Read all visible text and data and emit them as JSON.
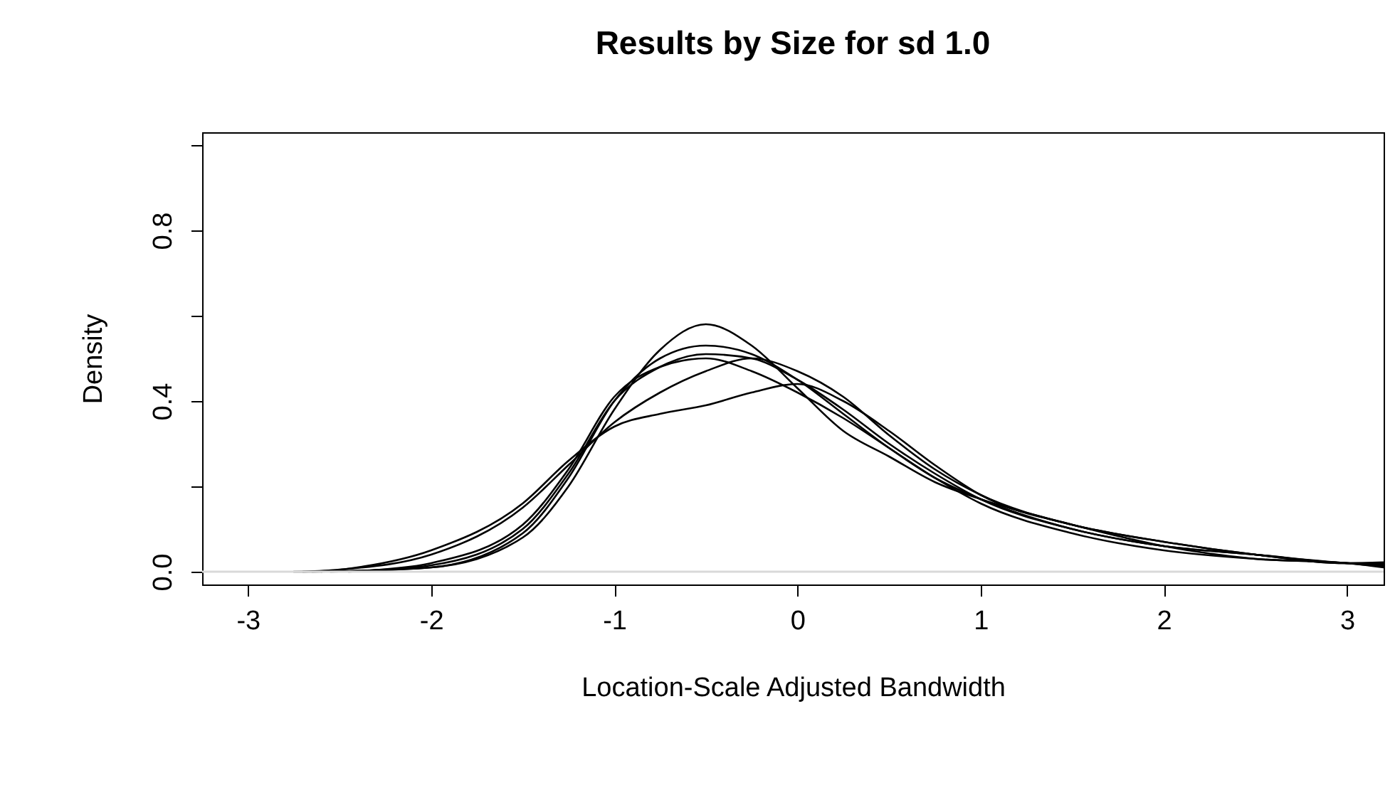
{
  "chart_data": {
    "type": "line",
    "title": "Results by Size for sd 1.0",
    "xlabel": "Location-Scale Adjusted Bandwidth",
    "ylabel": "Density",
    "x": [
      -2.75,
      -2.5,
      -2,
      -1.5,
      -1.25,
      -1,
      -0.75,
      -0.5,
      -0.25,
      0,
      0.25,
      0.5,
      0.75,
      1,
      1.5,
      2,
      2.5,
      3,
      3.2
    ],
    "series": [
      {
        "color": "#000000",
        "values": [
          0,
          0.001,
          0.01,
          0.08,
          0.2,
          0.38,
          0.52,
          0.58,
          0.53,
          0.43,
          0.33,
          0.27,
          0.21,
          0.17,
          0.11,
          0.06,
          0.03,
          0.02,
          0.01
        ]
      },
      {
        "color": "#000000",
        "x": [
          -2.65,
          -2.5,
          -2,
          -1.5,
          -1.25,
          -1,
          -0.75,
          -0.5,
          -0.25,
          0,
          0.25,
          0.5,
          0.75,
          1,
          1.5,
          2,
          2.5,
          3,
          3.2
        ],
        "values": [
          0,
          0.001,
          0.01,
          0.09,
          0.22,
          0.4,
          0.5,
          0.53,
          0.51,
          0.45,
          0.37,
          0.29,
          0.22,
          0.17,
          0.1,
          0.06,
          0.04,
          0.02,
          0.015
        ]
      },
      {
        "color": "#000000",
        "x": [
          -2.55,
          -2.4,
          -2,
          -1.5,
          -1.25,
          -1,
          -0.75,
          -0.5,
          -0.25,
          0,
          0.25,
          0.5,
          0.75,
          1,
          1.5,
          2,
          2.5,
          3,
          3.2
        ],
        "values": [
          0,
          0.002,
          0.015,
          0.1,
          0.23,
          0.4,
          0.48,
          0.51,
          0.5,
          0.45,
          0.38,
          0.3,
          0.23,
          0.17,
          0.1,
          0.06,
          0.04,
          0.02,
          0.018
        ]
      },
      {
        "color": "#000000",
        "x": [
          -2.45,
          -2.3,
          -2,
          -1.5,
          -1.25,
          -1,
          -0.75,
          -0.5,
          -0.25,
          0,
          0.25,
          0.5,
          0.75,
          1,
          1.5,
          2,
          2.5,
          3,
          3.2
        ],
        "values": [
          0,
          0.004,
          0.02,
          0.11,
          0.24,
          0.41,
          0.48,
          0.5,
          0.47,
          0.42,
          0.36,
          0.29,
          0.22,
          0.16,
          0.09,
          0.05,
          0.03,
          0.02,
          0.012
        ]
      },
      {
        "color": "#000000",
        "x": [
          -2.7,
          -2.5,
          -2,
          -1.5,
          -1.25,
          -1,
          -0.75,
          -0.5,
          -0.25,
          0,
          0.25,
          0.5,
          0.75,
          1,
          1.5,
          2,
          2.5,
          3,
          3.2
        ],
        "values": [
          0,
          0.005,
          0.04,
          0.15,
          0.25,
          0.35,
          0.42,
          0.47,
          0.5,
          0.47,
          0.41,
          0.32,
          0.24,
          0.18,
          0.11,
          0.07,
          0.04,
          0.02,
          0.02
        ]
      },
      {
        "color": "#000000",
        "x": [
          -2.6,
          -2.45,
          -2,
          -1.5,
          -1.25,
          -1,
          -0.75,
          -0.5,
          -0.25,
          0,
          0.25,
          0.5,
          0.75,
          1,
          1.5,
          2,
          2.5,
          3,
          3.2
        ],
        "values": [
          0,
          0.007,
          0.05,
          0.16,
          0.26,
          0.34,
          0.37,
          0.39,
          0.42,
          0.44,
          0.4,
          0.33,
          0.25,
          0.18,
          0.11,
          0.07,
          0.04,
          0.02,
          0.022
        ]
      }
    ],
    "xlim": [
      -3.25,
      3.2
    ],
    "ylim": [
      -0.03,
      1.03
    ],
    "xticks": [
      -3,
      -2,
      -1,
      0,
      1,
      2,
      3
    ],
    "yticks": [
      {
        "value": 0,
        "label": "0.0"
      },
      {
        "value": 0.2,
        "label": null
      },
      {
        "value": 0.4,
        "label": "0.4"
      },
      {
        "value": 0.6,
        "label": null
      },
      {
        "value": 0.8,
        "label": "0.8"
      },
      {
        "value": 1,
        "label": null
      }
    ],
    "ref_lines": [
      {
        "axis": "y",
        "value": 0,
        "color": "#d9d9d9"
      }
    ],
    "grid": false,
    "legend": false,
    "marker": "none",
    "line_style": "solid"
  }
}
